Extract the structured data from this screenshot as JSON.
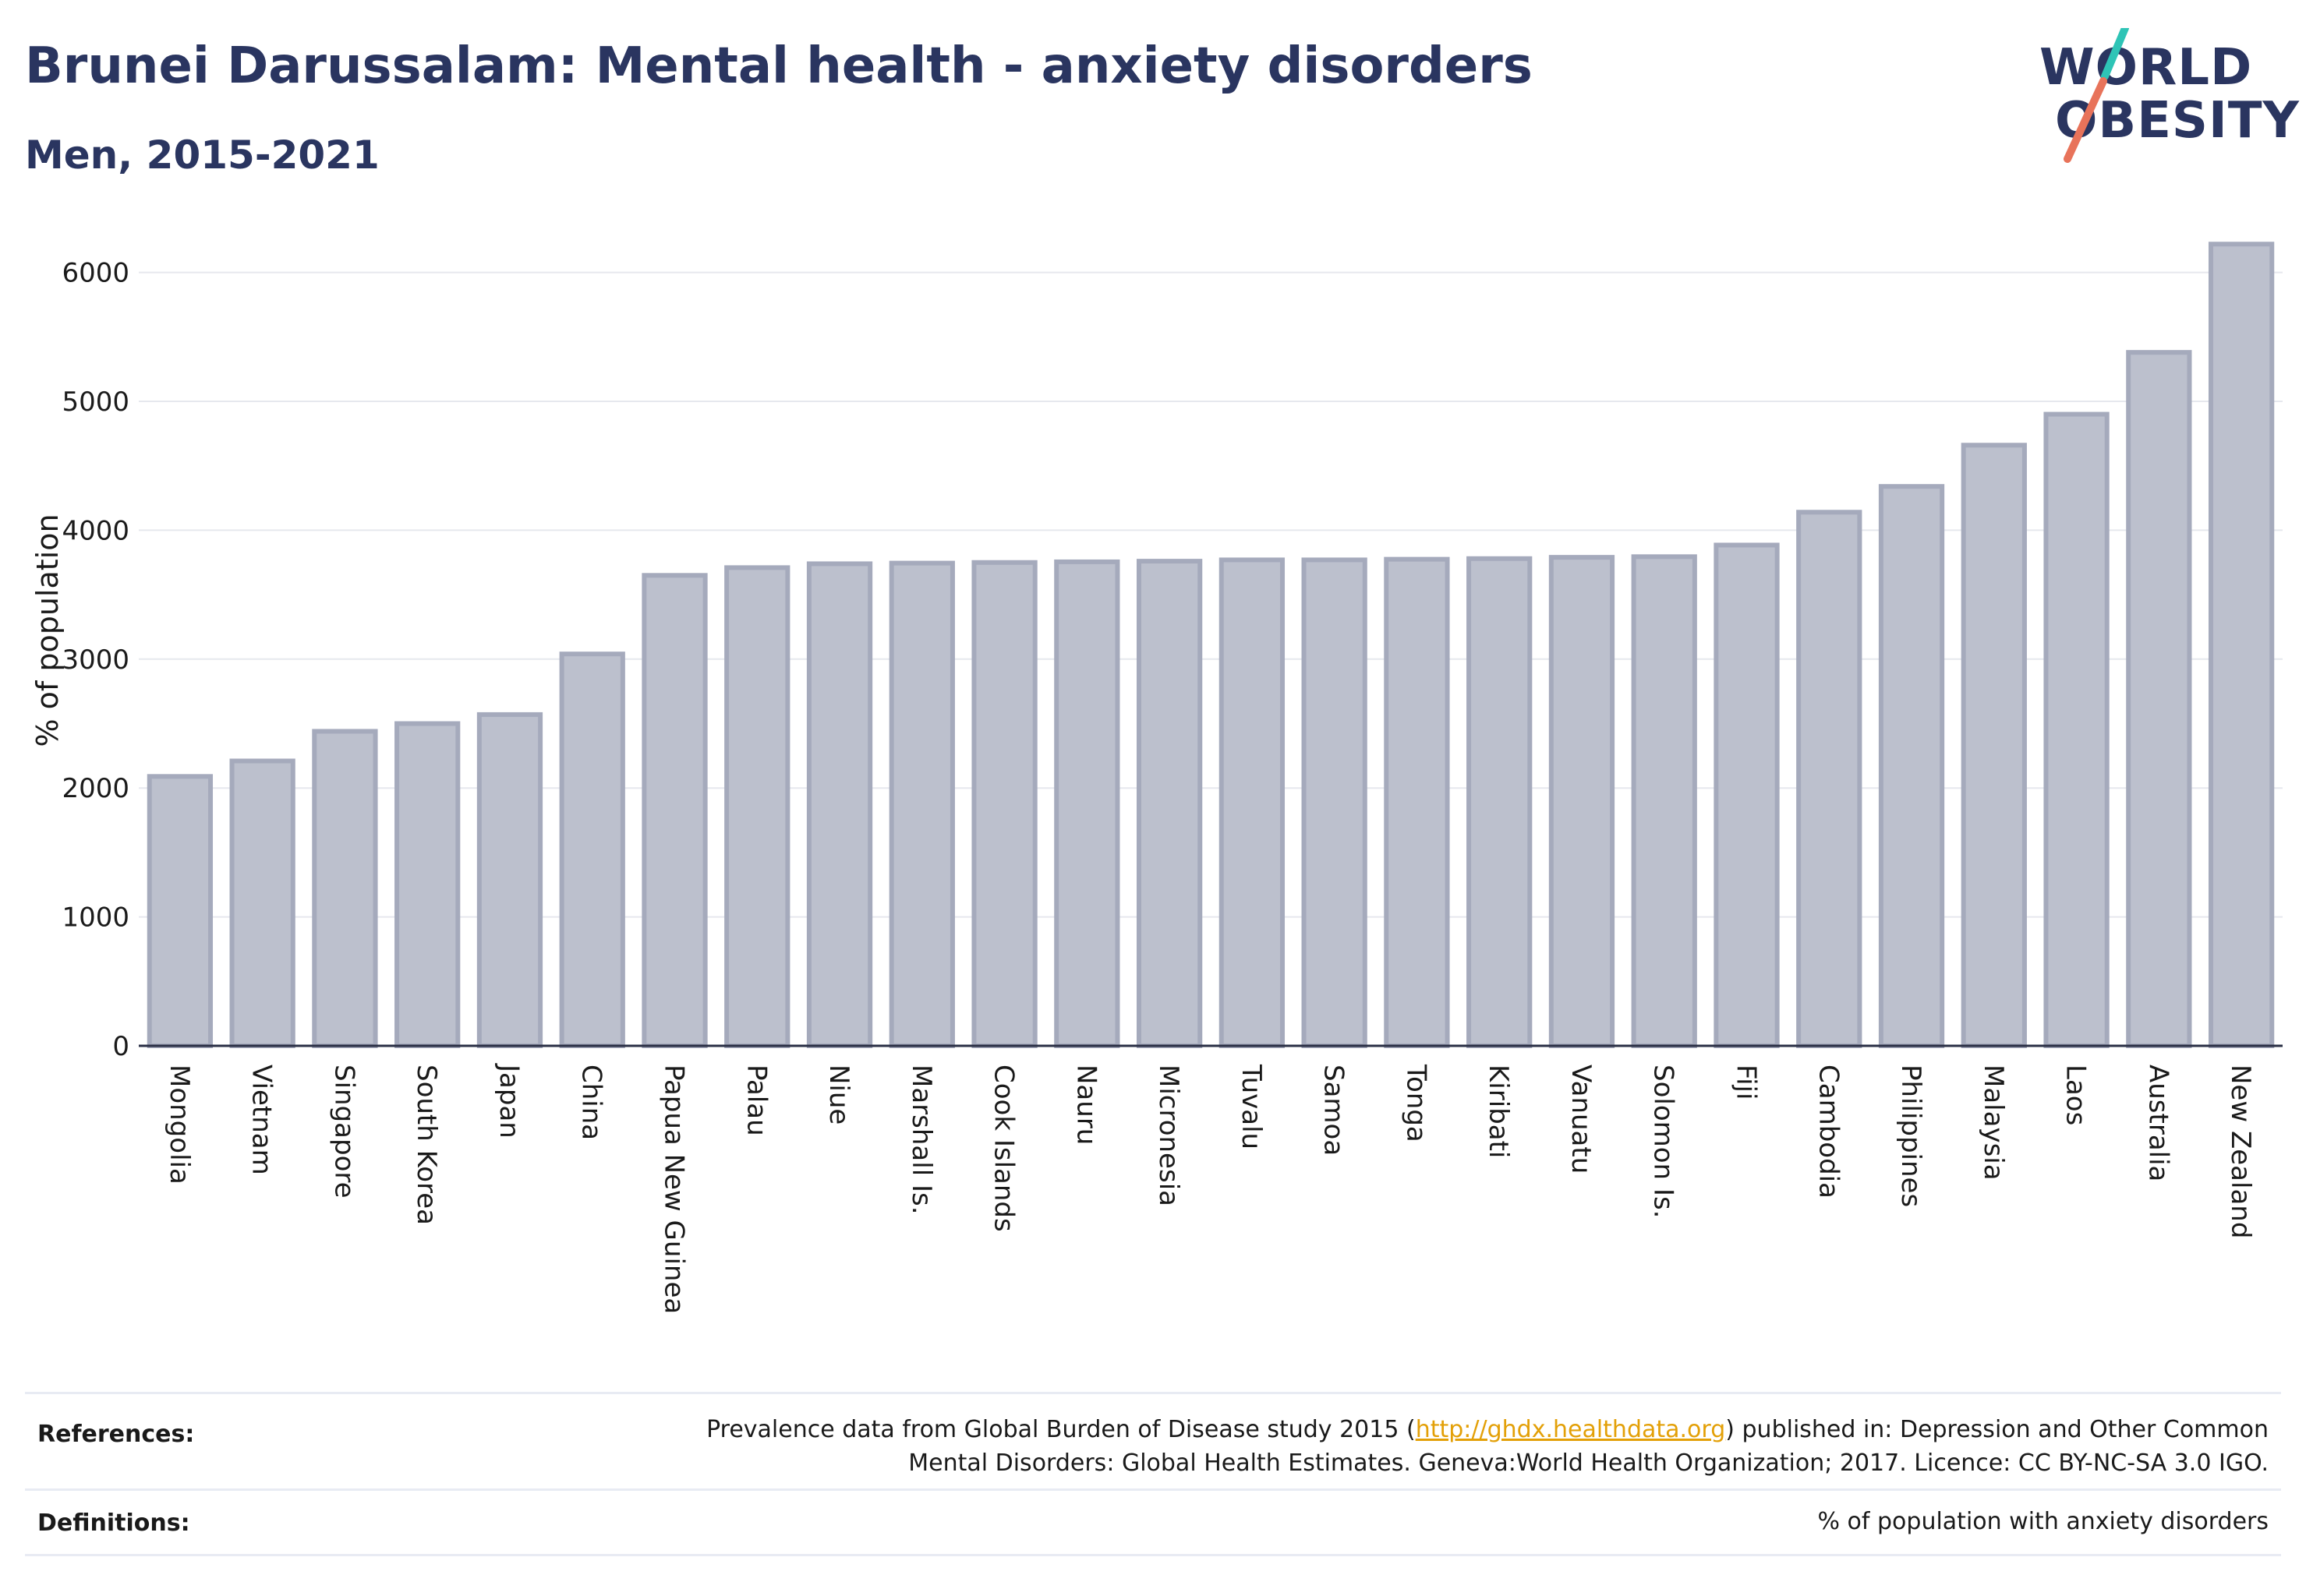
{
  "header": {
    "title": "Brunei Darussalam: Mental health - anxiety disorders",
    "subtitle": "Men, 2015-2021"
  },
  "logo": {
    "line1": "WORLD",
    "line2": "OBESITY",
    "accent_teal": "#2ec4b6",
    "accent_coral": "#e8735a"
  },
  "chart_data": {
    "type": "bar",
    "categories": [
      "Mongolia",
      "Vietnam",
      "Singapore",
      "South Korea",
      "Japan",
      "China",
      "Papua New Guinea",
      "Palau",
      "Niue",
      "Marshall Is.",
      "Cook Islands",
      "Nauru",
      "Micronesia",
      "Tuvalu",
      "Samoa",
      "Tonga",
      "Kiribati",
      "Vanuatu",
      "Solomon Is.",
      "Fiji",
      "Cambodia",
      "Philippines",
      "Malaysia",
      "Laos",
      "Australia",
      "New Zealand"
    ],
    "values": [
      2090,
      2210,
      2440,
      2500,
      2570,
      3040,
      3650,
      3710,
      3740,
      3745,
      3750,
      3755,
      3760,
      3770,
      3770,
      3775,
      3780,
      3790,
      3795,
      3885,
      4140,
      4340,
      4660,
      4900,
      5380,
      6220
    ],
    "ylabel": "% of population",
    "xlabel": "",
    "ylim": [
      0,
      6300
    ],
    "yticks": [
      0,
      1000,
      2000,
      3000,
      4000,
      5000,
      6000
    ],
    "grid": true,
    "bar_fill": "#bcc0cd",
    "bar_stroke": "#a5aabc"
  },
  "footer": {
    "references_label": "References:",
    "references_text_before": "Prevalence data from Global Burden of Disease study 2015 (",
    "references_link": "http://ghdx.healthdata.org",
    "references_text_after": ") published in: Depression and Other Common",
    "references_line2": "Mental Disorders: Global Health Estimates. Geneva:World Health Organization; 2017. Licence: CC BY-NC-SA 3.0 IGO.",
    "definitions_label": "Definitions:",
    "definitions_text": "% of population with anxiety disorders"
  }
}
